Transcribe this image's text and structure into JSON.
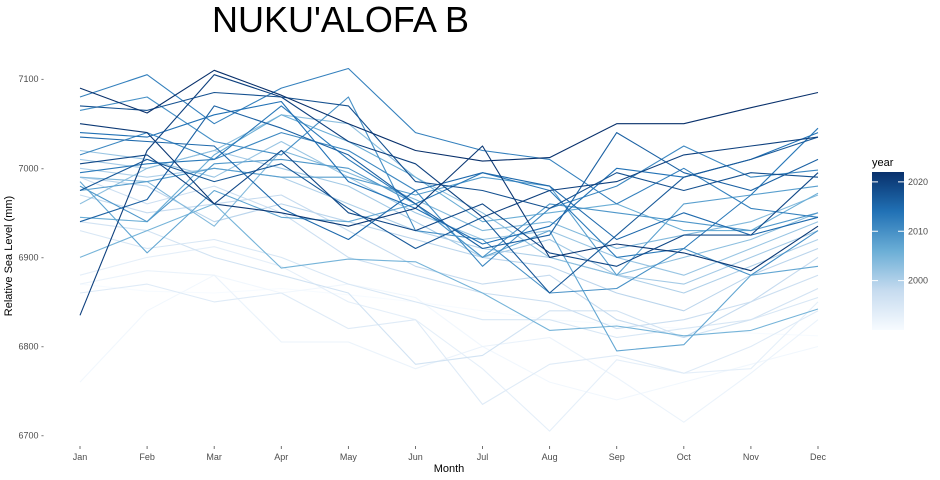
{
  "chart_data": {
    "type": "line",
    "title": "NUKU'ALOFA B",
    "xlabel": "Month",
    "ylabel": "Relative Sea Level (mm)",
    "categories": [
      "Jan",
      "Feb",
      "Mar",
      "Apr",
      "May",
      "Jun",
      "Jul",
      "Aug",
      "Sep",
      "Oct",
      "Nov",
      "Dec"
    ],
    "ylim": [
      6695,
      7135
    ],
    "yticks": [
      6700,
      6800,
      6900,
      7000,
      7100
    ],
    "ytick_labels": [
      "6700 -",
      "6800 -",
      "6900 -",
      "7000 -",
      "7100 -"
    ],
    "grid": false,
    "legend": {
      "title": "year",
      "position": "right",
      "range": [
        1990,
        2022
      ],
      "ticks": [
        2000,
        2010,
        2020
      ],
      "color_low": "#f7fbff",
      "color_high": "#08306b"
    },
    "series": [
      {
        "year": 1990,
        "values": [
          6870,
          6862,
          6860,
          6865,
          6858,
          6850,
          6840,
          6830,
          6825,
          6820,
          6815,
          6812
        ]
      },
      {
        "year": 1991,
        "values": [
          6760,
          6840,
          6880,
          6860,
          6870,
          6855,
          6800,
          6760,
          6740,
          6760,
          6780,
          6800
        ]
      },
      {
        "year": 1992,
        "values": [
          6870,
          6885,
          6880,
          6805,
          6805,
          6775,
          6800,
          6810,
          6765,
          6715,
          6770,
          6830
        ]
      },
      {
        "year": 1993,
        "values": [
          6880,
          6900,
          6912,
          6890,
          6850,
          6830,
          6775,
          6705,
          6785,
          6770,
          6775,
          6850
        ]
      },
      {
        "year": 1994,
        "values": [
          6860,
          6870,
          6850,
          6860,
          6820,
          6830,
          6735,
          6780,
          6790,
          6770,
          6800,
          6840
        ]
      },
      {
        "year": 1995,
        "values": [
          6930,
          6910,
          6920,
          6900,
          6870,
          6850,
          6830,
          6830,
          6810,
          6820,
          6830,
          6855
        ]
      },
      {
        "year": 1996,
        "values": [
          6940,
          6930,
          6900,
          6880,
          6860,
          6780,
          6790,
          6840,
          6840,
          6810,
          6830,
          6865
        ]
      },
      {
        "year": 1997,
        "values": [
          6990,
          6960,
          6980,
          6950,
          6900,
          6880,
          6860,
          6850,
          6820,
          6830,
          6850,
          6880
        ]
      },
      {
        "year": 1998,
        "values": [
          6970,
          6950,
          6960,
          6970,
          6930,
          6890,
          6870,
          6880,
          6830,
          6810,
          6850,
          6900
        ]
      },
      {
        "year": 1999,
        "values": [
          6990,
          6980,
          6940,
          6960,
          6940,
          6920,
          6900,
          6890,
          6860,
          6840,
          6880,
          6910
        ]
      },
      {
        "year": 2000,
        "values": [
          7000,
          6990,
          7000,
          6990,
          6960,
          6930,
          6910,
          6900,
          6880,
          6860,
          6890,
          6920
        ]
      },
      {
        "year": 2001,
        "values": [
          7010,
          7000,
          7020,
          7000,
          6980,
          6940,
          6900,
          6920,
          6880,
          6870,
          6900,
          6930
        ]
      },
      {
        "year": 2002,
        "values": [
          7020,
          7010,
          6990,
          7030,
          6990,
          6950,
          6920,
          6930,
          6900,
          6880,
          6910,
          6940
        ]
      },
      {
        "year": 2003,
        "values": [
          6960,
          7000,
          7020,
          7060,
          7050,
          6990,
          6950,
          6900,
          6880,
          6900,
          6920,
          6950
        ]
      },
      {
        "year": 2004,
        "values": [
          6990,
          6985,
          6935,
          7020,
          6995,
          6965,
          6930,
          6940,
          6910,
          6925,
          6940,
          6970
        ]
      },
      {
        "year": 2005,
        "values": [
          6900,
          6930,
          6960,
          6888,
          6898,
          6895,
          6860,
          6818,
          6823,
          6812,
          6818,
          6842
        ]
      },
      {
        "year": 2006,
        "values": [
          6945,
          6940,
          7015,
          7060,
          7030,
          6990,
          6940,
          6950,
          6960,
          6930,
          6930,
          6972
        ]
      },
      {
        "year": 2007,
        "values": [
          6985,
          6905,
          6975,
          6945,
          6940,
          6960,
          6900,
          6930,
          6795,
          6802,
          6880,
          6890
        ]
      },
      {
        "year": 2008,
        "values": [
          6975,
          6985,
          7000,
          6990,
          6990,
          6970,
          6990,
          6980,
          6880,
          6960,
          6970,
          6980
        ]
      },
      {
        "year": 2009,
        "values": [
          6980,
          6940,
          7005,
          7010,
          7000,
          6960,
          6900,
          6960,
          6950,
          6940,
          6930,
          6950
        ]
      },
      {
        "year": 2010,
        "values": [
          7065,
          7080,
          7030,
          7015,
          7080,
          6930,
          6920,
          6860,
          6865,
          6910,
          6880,
          6930
        ]
      },
      {
        "year": 2011,
        "values": [
          7015,
          7040,
          7010,
          7040,
          7020,
          6975,
          6890,
          6955,
          6980,
          7025,
          6990,
          6998
        ]
      },
      {
        "year": 2012,
        "values": [
          7080,
          7105,
          7050,
          7090,
          7112,
          7040,
          7020,
          7010,
          6960,
          7000,
          6955,
          6945
        ]
      },
      {
        "year": 2013,
        "values": [
          6995,
          7005,
          7010,
          7070,
          7010,
          6960,
          6995,
          6975,
          6900,
          6910,
          6970,
          7045
        ]
      },
      {
        "year": 2014,
        "values": [
          7040,
          7035,
          7060,
          7075,
          6985,
          6955,
          6915,
          6935,
          7000,
          6990,
          7010,
          7040
        ]
      },
      {
        "year": 2015,
        "values": [
          7035,
          7030,
          7025,
          6955,
          6920,
          6975,
          6995,
          6980,
          6920,
          6950,
          6925,
          6945
        ]
      },
      {
        "year": 2016,
        "values": [
          6940,
          6965,
          7070,
          7045,
          7015,
          6960,
          6910,
          6925,
          7040,
          6995,
          6975,
          7010
        ]
      },
      {
        "year": 2017,
        "values": [
          6975,
          7010,
          6985,
          7005,
          6955,
          6910,
          6945,
          6860,
          6925,
          6990,
          7010,
          7035
        ]
      },
      {
        "year": 2018,
        "values": [
          7070,
          7065,
          7085,
          7080,
          7070,
          6985,
          6975,
          6955,
          6995,
          6975,
          6995,
          6990
        ]
      },
      {
        "year": 2019,
        "values": [
          7005,
          7015,
          6960,
          7020,
          6950,
          6930,
          6960,
          6905,
          6890,
          6925,
          6925,
          6995
        ]
      },
      {
        "year": 2020,
        "values": [
          6835,
          7020,
          7105,
          7080,
          7030,
          7005,
          6945,
          6975,
          6985,
          7015,
          7025,
          7035
        ]
      },
      {
        "year": 2021,
        "values": [
          7050,
          7040,
          6960,
          6950,
          6935,
          6955,
          7025,
          6900,
          6915,
          6905,
          6885,
          6935
        ]
      },
      {
        "year": 2022,
        "values": [
          7090,
          7062,
          7110,
          7082,
          7050,
          7020,
          7008,
          7012,
          7050,
          7050,
          7068,
          7085
        ]
      }
    ]
  }
}
